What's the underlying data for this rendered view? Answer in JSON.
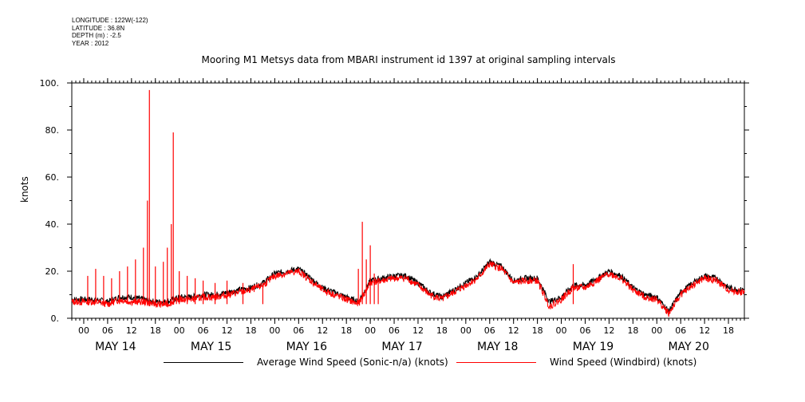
{
  "meta": {
    "longitude": "LONGITUDE : 122W(-122)",
    "latitude": "LATITUDE : 36.8N",
    "depth": "DEPTH (m) : -2.5",
    "year": "YEAR : 2012"
  },
  "chart_data": {
    "type": "line",
    "title": "Mooring M1 Metsys data from MBARI instrument id 1397 at original sampling intervals",
    "ylabel": "knots",
    "xlabel": "",
    "ylim": [
      0,
      100
    ],
    "yticks": [
      {
        "v": 0,
        "label": "0."
      },
      {
        "v": 20,
        "label": "20."
      },
      {
        "v": 40,
        "label": "40."
      },
      {
        "v": 60,
        "label": "60."
      },
      {
        "v": 80,
        "label": "80."
      },
      {
        "v": 100,
        "label": "100."
      }
    ],
    "xlim_hours": [
      -3,
      166
    ],
    "hour_tick_labels": [
      "00",
      "06",
      "12",
      "18",
      "00",
      "06",
      "12",
      "18",
      "00",
      "06",
      "12",
      "18",
      "00",
      "06",
      "12",
      "18",
      "00",
      "06",
      "12",
      "18",
      "00",
      "06",
      "12",
      "18",
      "00",
      "06",
      "12",
      "18"
    ],
    "day_labels": [
      "MAY 14",
      "MAY 15",
      "MAY 16",
      "MAY 17",
      "MAY 18",
      "MAY 19",
      "MAY 20"
    ],
    "grid": false,
    "legend_position": "bottom",
    "series": [
      {
        "name": "Average Wind Speed (Sonic-n/a) (knots)",
        "color": "#000000",
        "points": [
          [
            -3,
            8
          ],
          [
            0,
            8
          ],
          [
            3,
            8
          ],
          [
            6,
            7
          ],
          [
            9,
            9
          ],
          [
            12,
            9
          ],
          [
            15,
            8
          ],
          [
            18,
            7
          ],
          [
            21,
            7
          ],
          [
            24,
            9
          ],
          [
            27,
            9
          ],
          [
            30,
            10
          ],
          [
            33,
            10
          ],
          [
            36,
            11
          ],
          [
            39,
            12
          ],
          [
            42,
            13
          ],
          [
            45,
            15
          ],
          [
            48,
            19
          ],
          [
            51,
            20
          ],
          [
            54,
            21
          ],
          [
            57,
            17
          ],
          [
            60,
            13
          ],
          [
            63,
            11
          ],
          [
            66,
            9
          ],
          [
            69,
            7
          ],
          [
            72,
            16
          ],
          [
            75,
            17
          ],
          [
            78,
            18
          ],
          [
            81,
            18
          ],
          [
            84,
            15
          ],
          [
            87,
            11
          ],
          [
            90,
            9
          ],
          [
            93,
            12
          ],
          [
            96,
            15
          ],
          [
            99,
            18
          ],
          [
            102,
            24
          ],
          [
            105,
            22
          ],
          [
            108,
            16
          ],
          [
            111,
            17
          ],
          [
            114,
            17
          ],
          [
            117,
            7
          ],
          [
            120,
            9
          ],
          [
            123,
            14
          ],
          [
            126,
            14
          ],
          [
            129,
            17
          ],
          [
            132,
            20
          ],
          [
            135,
            18
          ],
          [
            138,
            13
          ],
          [
            141,
            10
          ],
          [
            144,
            9
          ],
          [
            147,
            3
          ],
          [
            150,
            11
          ],
          [
            153,
            15
          ],
          [
            156,
            18
          ],
          [
            159,
            17
          ],
          [
            162,
            13
          ],
          [
            165,
            12
          ],
          [
            168,
            13
          ],
          [
            171,
            8
          ],
          [
            174,
            14
          ],
          [
            177,
            19
          ]
        ]
      },
      {
        "name": "Wind Speed (Windbird) (knots)",
        "color": "#ff0000",
        "points": [
          [
            -3,
            7
          ],
          [
            0,
            7
          ],
          [
            3,
            7
          ],
          [
            6,
            6
          ],
          [
            9,
            8
          ],
          [
            12,
            7
          ],
          [
            15,
            7
          ],
          [
            18,
            6
          ],
          [
            21,
            6
          ],
          [
            24,
            8
          ],
          [
            27,
            8
          ],
          [
            30,
            9
          ],
          [
            33,
            9
          ],
          [
            36,
            10
          ],
          [
            39,
            11
          ],
          [
            42,
            12
          ],
          [
            45,
            14
          ],
          [
            48,
            18
          ],
          [
            51,
            19
          ],
          [
            54,
            20
          ],
          [
            57,
            16
          ],
          [
            60,
            12
          ],
          [
            63,
            10
          ],
          [
            66,
            8
          ],
          [
            69,
            6
          ],
          [
            72,
            15
          ],
          [
            75,
            16
          ],
          [
            78,
            17
          ],
          [
            81,
            17
          ],
          [
            84,
            14
          ],
          [
            87,
            10
          ],
          [
            90,
            8
          ],
          [
            93,
            11
          ],
          [
            96,
            14
          ],
          [
            99,
            17
          ],
          [
            102,
            23
          ],
          [
            105,
            21
          ],
          [
            108,
            15
          ],
          [
            111,
            16
          ],
          [
            114,
            16
          ],
          [
            117,
            5
          ],
          [
            120,
            8
          ],
          [
            123,
            13
          ],
          [
            126,
            13
          ],
          [
            129,
            16
          ],
          [
            132,
            19
          ],
          [
            135,
            17
          ],
          [
            138,
            12
          ],
          [
            141,
            9
          ],
          [
            144,
            8
          ],
          [
            147,
            2
          ],
          [
            150,
            10
          ],
          [
            153,
            14
          ],
          [
            156,
            17
          ],
          [
            159,
            16
          ],
          [
            162,
            12
          ],
          [
            165,
            11
          ],
          [
            168,
            12
          ],
          [
            171,
            7
          ],
          [
            174,
            13
          ],
          [
            177,
            18
          ]
        ],
        "spikes": [
          [
            1,
            18
          ],
          [
            3,
            21
          ],
          [
            5,
            18
          ],
          [
            7,
            17
          ],
          [
            9,
            20
          ],
          [
            11,
            22
          ],
          [
            13,
            25
          ],
          [
            15,
            30
          ],
          [
            16,
            50
          ],
          [
            16.5,
            97
          ],
          [
            18,
            22
          ],
          [
            20,
            24
          ],
          [
            21,
            30
          ],
          [
            22,
            40
          ],
          [
            22.5,
            79
          ],
          [
            24,
            20
          ],
          [
            26,
            18
          ],
          [
            28,
            17
          ],
          [
            30,
            16
          ],
          [
            33,
            15
          ],
          [
            36,
            16
          ],
          [
            40,
            15
          ],
          [
            45,
            15
          ],
          [
            69,
            21
          ],
          [
            70,
            41
          ],
          [
            71,
            25
          ],
          [
            72,
            31
          ],
          [
            73,
            19
          ],
          [
            74,
            17
          ],
          [
            123,
            23
          ]
        ]
      }
    ]
  }
}
